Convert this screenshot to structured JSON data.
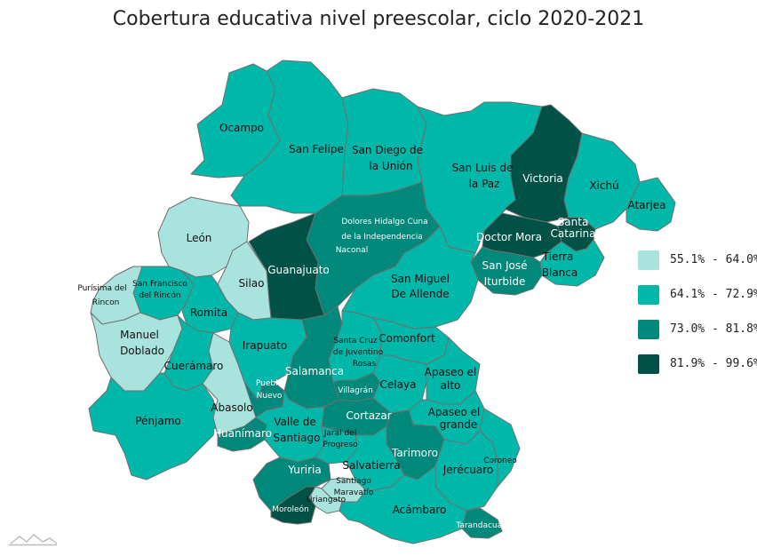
{
  "title": "Cobertura educativa nivel preescolar, ciclo 2020-2021",
  "legend": [
    {
      "label": "55.1% - 64.0%",
      "color": "#a8e3dd"
    },
    {
      "label": "64.1% - 72.9%",
      "color": "#00b8aa"
    },
    {
      "label": "73.0% - 81.8%",
      "color": "#00897a"
    },
    {
      "label": "81.9% - 99.6%",
      "color": "#005246"
    }
  ],
  "municipalities": [
    {
      "name": "Ocampo",
      "cls": 1
    },
    {
      "name": "San Felipe",
      "cls": 1
    },
    {
      "name": "San Diego de la Unión",
      "cls": 1
    },
    {
      "name": "San Luis de la Paz",
      "cls": 1
    },
    {
      "name": "Victoria",
      "cls": 3
    },
    {
      "name": "Xichú",
      "cls": 1
    },
    {
      "name": "Atarjea",
      "cls": 1
    },
    {
      "name": "Santa Catarina",
      "cls": 3
    },
    {
      "name": "Doctor Mora",
      "cls": 3
    },
    {
      "name": "Tierra Blanca",
      "cls": 1
    },
    {
      "name": "San José Iturbide",
      "cls": 2
    },
    {
      "name": "Dolores Hidalgo Cuna de la Independencia Naconal",
      "cls": 2
    },
    {
      "name": "León",
      "cls": 0
    },
    {
      "name": "Guanajuato",
      "cls": 3
    },
    {
      "name": "Silao",
      "cls": 0
    },
    {
      "name": "San Francisco del Rincón",
      "cls": 1
    },
    {
      "name": "Purísima del Rincon",
      "cls": 0
    },
    {
      "name": "Romita",
      "cls": 1
    },
    {
      "name": "Manuel Doblado",
      "cls": 0
    },
    {
      "name": "Cuerámaro",
      "cls": 1
    },
    {
      "name": "Pénjamo",
      "cls": 1
    },
    {
      "name": "Abasolo",
      "cls": 0
    },
    {
      "name": "Huanímaro",
      "cls": 2
    },
    {
      "name": "Irapuato",
      "cls": 1
    },
    {
      "name": "Pueblo Nuevo",
      "cls": 2
    },
    {
      "name": "Salamanca",
      "cls": 2
    },
    {
      "name": "Valle de Santiago",
      "cls": 1
    },
    {
      "name": "San Miguel De Allende",
      "cls": 1
    },
    {
      "name": "Santa Cruz de Juventino Rosas",
      "cls": 1
    },
    {
      "name": "Comonfort",
      "cls": 1
    },
    {
      "name": "Villagrán",
      "cls": 2
    },
    {
      "name": "Celaya",
      "cls": 1
    },
    {
      "name": "Apaseo el alto",
      "cls": 1
    },
    {
      "name": "Apaseo el grande",
      "cls": 1
    },
    {
      "name": "Cortazar",
      "cls": 2
    },
    {
      "name": "Jaral del Progreso",
      "cls": 1
    },
    {
      "name": "Tarimoro",
      "cls": 2
    },
    {
      "name": "Yuriria",
      "cls": 2
    },
    {
      "name": "Santiago Maravatío",
      "cls": 0
    },
    {
      "name": "Salvatierra",
      "cls": 1
    },
    {
      "name": "Jerécuaro",
      "cls": 1
    },
    {
      "name": "Coroneo",
      "cls": 1
    },
    {
      "name": "Uriangato",
      "cls": 0
    },
    {
      "name": "Moroleón",
      "cls": 3
    },
    {
      "name": "Acámbaro",
      "cls": 1
    },
    {
      "name": "Tarandacuao",
      "cls": 2
    }
  ]
}
